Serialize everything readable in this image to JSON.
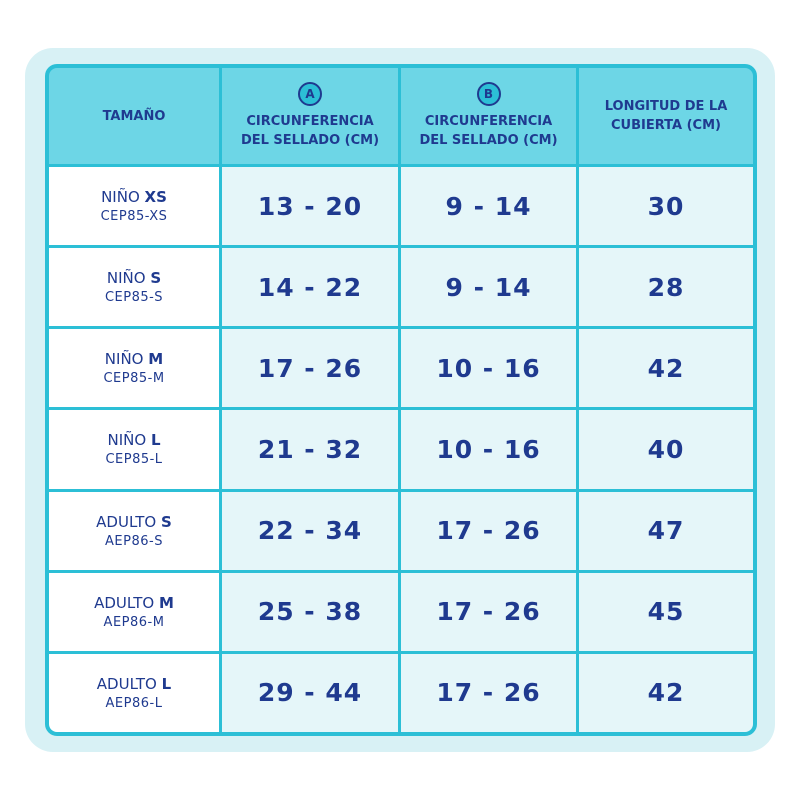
{
  "table": {
    "header": {
      "size": "TAMAÑO",
      "col_a": {
        "badge": "A",
        "label": "CIRCUNFERENCIA DEL SELLADO (CM)"
      },
      "col_b": {
        "badge": "B",
        "label": "CIRCUNFERENCIA DEL SELLADO (CM)"
      },
      "length": "LONGITUD DE LA CUBIERTA (CM)"
    },
    "rows": [
      {
        "name": "NIÑO",
        "size": "XS",
        "code": "CEP85-XS",
        "a": "13 - 20",
        "b": "9 - 14",
        "length": 30
      },
      {
        "name": "NIÑO",
        "size": "S",
        "code": "CEP85-S",
        "a": "14 - 22",
        "b": "9 - 14",
        "length": 28
      },
      {
        "name": "NIÑO",
        "size": "M",
        "code": "CEP85-M",
        "a": "17 - 26",
        "b": "10 - 16",
        "length": 42
      },
      {
        "name": "NIÑO",
        "size": "L",
        "code": "CEP85-L",
        "a": "21 - 32",
        "b": "10 - 16",
        "length": 40
      },
      {
        "name": "ADULTO",
        "size": "S",
        "code": "AEP86-S",
        "a": "22 - 34",
        "b": "17 - 26",
        "length": 47
      },
      {
        "name": "ADULTO",
        "size": "M",
        "code": "AEP86-M",
        "a": "25 - 38",
        "b": "17 - 26",
        "length": 45
      },
      {
        "name": "ADULTO",
        "size": "L",
        "code": "AEP86-L",
        "a": "29 - 44",
        "b": "17 - 26",
        "length": 42
      }
    ]
  }
}
